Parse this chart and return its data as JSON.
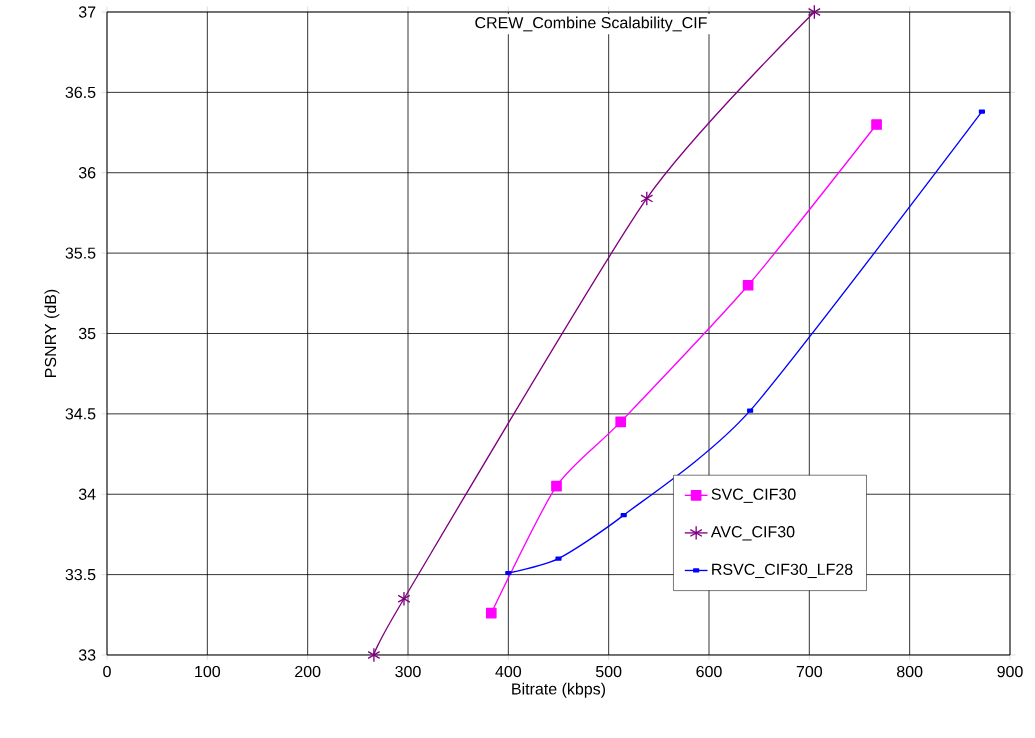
{
  "chart_data": {
    "type": "line",
    "title": "CREW_Combine Scalability_CIF",
    "xlabel": "Bitrate (kbps)",
    "ylabel": "PSNRY (dB)",
    "xlim": [
      0,
      900
    ],
    "xticks": [
      0,
      100,
      200,
      300,
      400,
      500,
      600,
      700,
      800,
      900
    ],
    "ylim": [
      33,
      37
    ],
    "yticks": [
      33,
      33.5,
      34,
      34.5,
      35,
      35.5,
      36,
      36.5,
      37
    ],
    "grid": true,
    "legend": "bottom right",
    "series": [
      {
        "name": "SVC_CIF30",
        "color": "#ff00ff",
        "marker": "square",
        "x": [
          383,
          448,
          512,
          639,
          767
        ],
        "values": [
          33.26,
          34.05,
          34.45,
          35.3,
          36.3
        ]
      },
      {
        "name": "AVC_CIF30",
        "color": "#800080",
        "marker": "cross",
        "x": [
          266,
          296,
          538,
          705
        ],
        "values": [
          33.0,
          33.35,
          35.84,
          37.0
        ]
      },
      {
        "name": "RSVC_CIF30_LF28",
        "color": "#0000ff",
        "marker": "square",
        "x": [
          400,
          450,
          515,
          641,
          872
        ],
        "values": [
          33.51,
          33.6,
          33.87,
          34.52,
          36.38
        ]
      }
    ]
  }
}
